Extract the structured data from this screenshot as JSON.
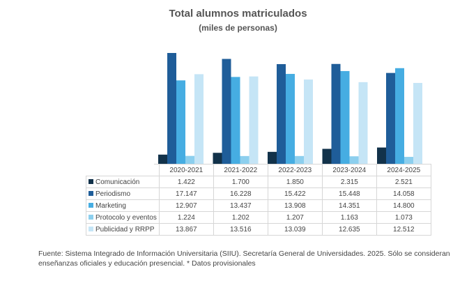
{
  "chart_data": {
    "type": "bar",
    "title": "Total alumnos matriculados",
    "subtitle": "(miles de personas)",
    "categories": [
      "2020-2021",
      "2021-2022",
      "2022-2023",
      "2023-2024",
      "2024-2025"
    ],
    "series": [
      {
        "name": "Comunicación",
        "color": "#12324a",
        "values": [
          1.422,
          1.7,
          1.85,
          2.315,
          2.521
        ],
        "labels": [
          "1.422",
          "1.700",
          "1.850",
          "2.315",
          "2.521"
        ]
      },
      {
        "name": "Periodismo",
        "color": "#1f5d99",
        "values": [
          17.147,
          16.228,
          15.422,
          15.448,
          14.058
        ],
        "labels": [
          "17.147",
          "16.228",
          "15.422",
          "15.448",
          "14.058"
        ]
      },
      {
        "name": "Marketing",
        "color": "#46ade2",
        "values": [
          12.907,
          13.437,
          13.908,
          14.351,
          14.8
        ],
        "labels": [
          "12.907",
          "13.437",
          "13.908",
          "14.351",
          "14.800"
        ]
      },
      {
        "name": "Protocolo y eventos",
        "color": "#8ccfee",
        "values": [
          1.224,
          1.202,
          1.207,
          1.163,
          1.073
        ],
        "labels": [
          "1.224",
          "1.202",
          "1.207",
          "1.163",
          "1.073"
        ]
      },
      {
        "name": "Publicidad y RRPP",
        "color": "#c5e5f6",
        "values": [
          13.867,
          13.516,
          13.039,
          12.635,
          12.512
        ],
        "labels": [
          "13.867",
          "13.516",
          "13.039",
          "12.635",
          "12.512"
        ]
      }
    ],
    "ylim": [
      0,
      17.5
    ],
    "grid": false,
    "legend": "table-left"
  },
  "footnote": "Fuente: Sistema Integrado de Información Universitaria (SIIU). Secretaría  General de Universidades. 2025. Sólo se consideran enseñanzas oficiales y educación presencial. * Datos provisionales"
}
